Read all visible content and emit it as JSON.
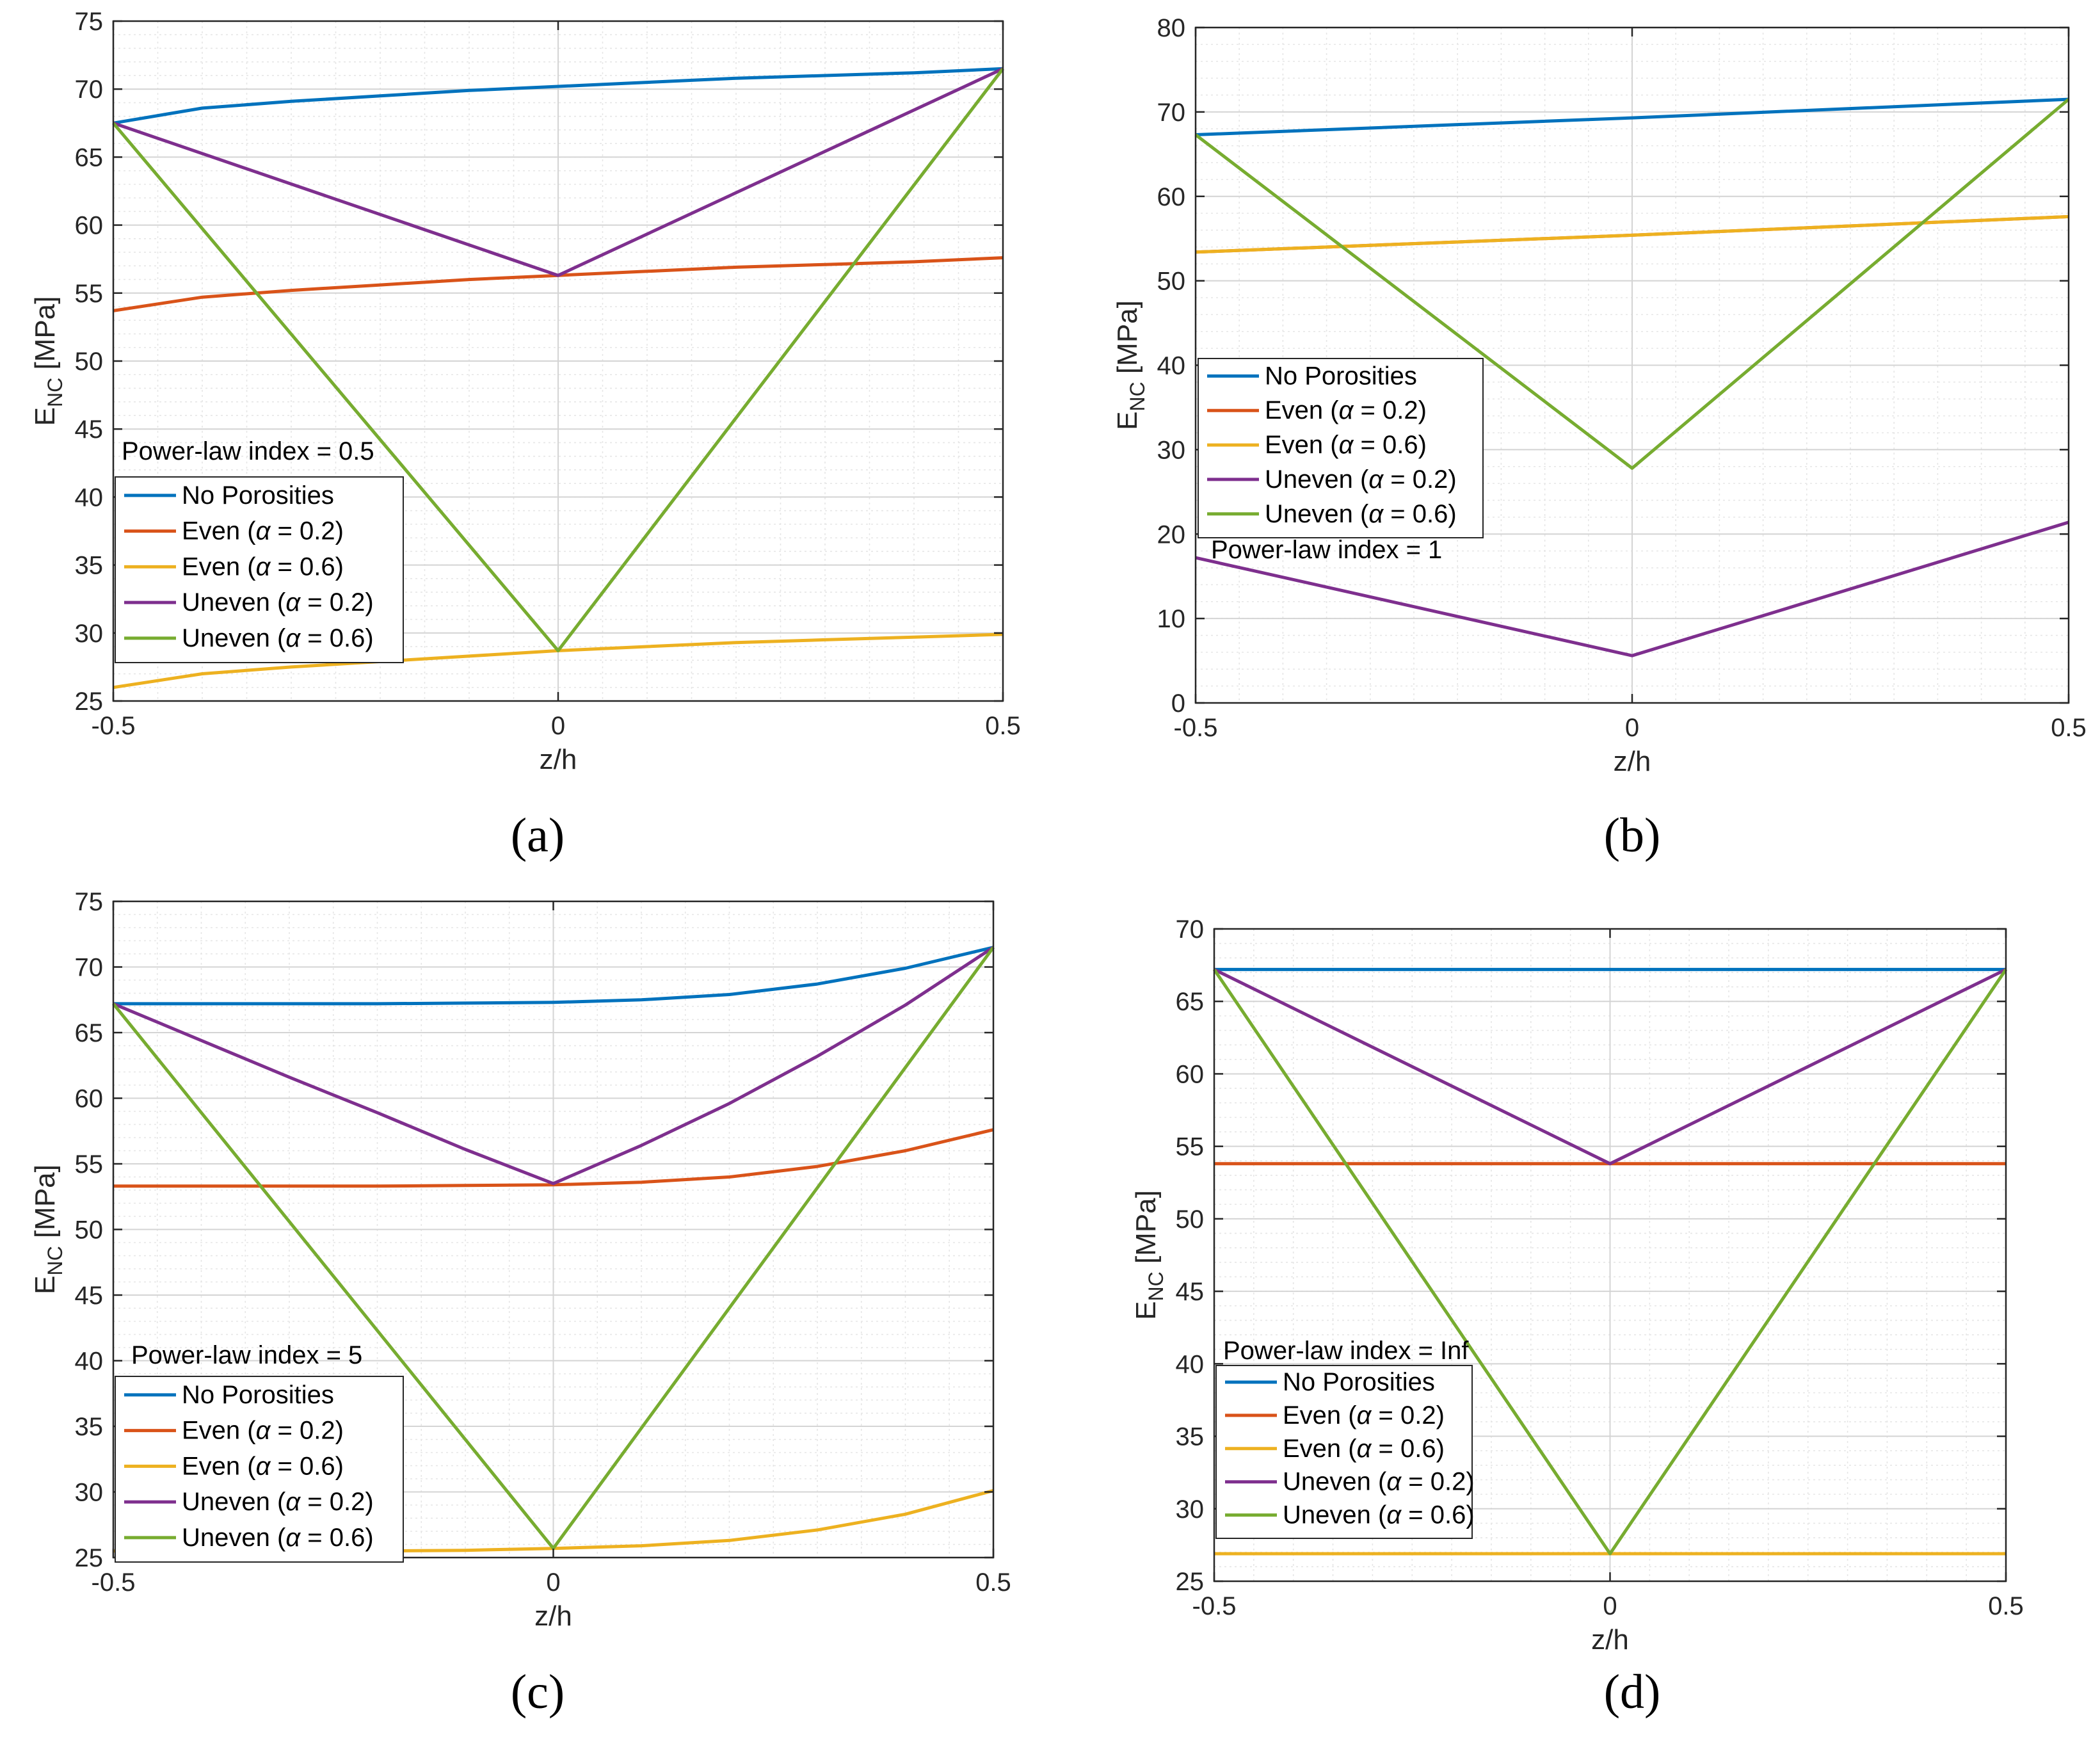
{
  "figure": {
    "panel_labels": [
      "(a)",
      "(b)",
      "(c)",
      "(d)"
    ]
  },
  "series_style": {
    "No Porosities": "#0072bd",
    "Even (α = 0.2)": "#d95319",
    "Even (α = 0.6)": "#edb120",
    "Uneven (α = 0.2)": "#7e2f8e",
    "Uneven (α = 0.6)": "#77ac30"
  },
  "chart_data": [
    {
      "type": "line",
      "panel": "(a)",
      "annotation": "Power-law index = 0.5",
      "xlabel": "z/h",
      "ylabel": "E_NC [MPa]",
      "ylabel_main": "E",
      "ylabel_sub": "NC",
      "ylabel_tail": " [MPa]",
      "xlim": [
        -0.5,
        0.5
      ],
      "ylim": [
        25,
        75
      ],
      "xticks": [
        -0.5,
        0,
        0.5
      ],
      "xtick_labels": [
        "-0.5",
        "0",
        "0.5"
      ],
      "yticks": [
        25,
        30,
        35,
        40,
        45,
        50,
        55,
        60,
        65,
        70,
        75
      ],
      "ytick_labels": [
        "25",
        "30",
        "35",
        "40",
        "45",
        "50",
        "55",
        "60",
        "65",
        "70",
        "75"
      ],
      "grid": true,
      "legend": "left, below annotation",
      "legend_labels": [
        "No Porosities",
        "Even (",
        "Even (",
        "Uneven (",
        "Uneven ("
      ],
      "legend_alphas": [
        "",
        "α = 0.2)",
        "α = 0.6)",
        "α = 0.2)",
        "α = 0.6)"
      ],
      "series": [
        {
          "name": "No Porosities",
          "x": [
            -0.5,
            -0.4,
            -0.3,
            -0.2,
            -0.1,
            0,
            0.1,
            0.2,
            0.3,
            0.4,
            0.5
          ],
          "values": [
            67.5,
            68.6,
            69.1,
            69.5,
            69.9,
            70.2,
            70.5,
            70.8,
            71.0,
            71.2,
            71.5
          ]
        },
        {
          "name": "Even (α = 0.2)",
          "x": [
            -0.5,
            -0.4,
            -0.3,
            -0.2,
            -0.1,
            0,
            0.1,
            0.2,
            0.3,
            0.4,
            0.5
          ],
          "values": [
            53.7,
            54.7,
            55.2,
            55.6,
            56.0,
            56.3,
            56.6,
            56.9,
            57.1,
            57.3,
            57.6
          ]
        },
        {
          "name": "Even (α = 0.6)",
          "x": [
            -0.5,
            -0.4,
            -0.3,
            -0.2,
            -0.1,
            0,
            0.1,
            0.2,
            0.3,
            0.4,
            0.5
          ],
          "values": [
            26.0,
            27.0,
            27.5,
            27.9,
            28.3,
            28.7,
            29.0,
            29.3,
            29.5,
            29.7,
            29.9
          ]
        },
        {
          "name": "Uneven (α = 0.2)",
          "x": [
            -0.5,
            0,
            0.5
          ],
          "values": [
            67.5,
            56.3,
            71.5
          ]
        },
        {
          "name": "Uneven (α = 0.6)",
          "x": [
            -0.5,
            0,
            0.5
          ],
          "values": [
            67.5,
            28.7,
            71.5
          ]
        }
      ]
    },
    {
      "type": "line",
      "panel": "(b)",
      "annotation": "Power-law index = 1",
      "xlabel": "z/h",
      "ylabel": "E_NC [MPa]",
      "ylabel_main": "E",
      "ylabel_sub": "NC",
      "ylabel_tail": " [MPa]",
      "xlim": [
        -0.5,
        0.5
      ],
      "ylim": [
        0,
        80
      ],
      "xticks": [
        -0.5,
        0,
        0.5
      ],
      "xtick_labels": [
        "-0.5",
        "0",
        "0.5"
      ],
      "yticks": [
        0,
        10,
        20,
        30,
        40,
        50,
        60,
        70,
        80
      ],
      "ytick_labels": [
        "0",
        "10",
        "20",
        "30",
        "40",
        "50",
        "60",
        "70",
        "80"
      ],
      "grid": true,
      "legend": "left, above annotation",
      "legend_labels": [
        "No Porosities",
        "Even (",
        "Even (",
        "Uneven (",
        "Uneven ("
      ],
      "legend_alphas": [
        "",
        "α = 0.2)",
        "α = 0.6)",
        "α = 0.2)",
        "α = 0.6)"
      ],
      "series": [
        {
          "name": "No Porosities",
          "x": [
            -0.5,
            0,
            0.5
          ],
          "values": [
            67.3,
            69.3,
            71.5
          ]
        },
        {
          "name": "Even (α = 0.2)",
          "x": [
            -0.5,
            0,
            0.5
          ],
          "values": [
            53.4,
            55.4,
            57.6
          ]
        },
        {
          "name": "Even (α = 0.6)",
          "x": [
            -0.5,
            0,
            0.5
          ],
          "values": [
            53.4,
            55.4,
            57.6
          ]
        },
        {
          "name": "Uneven (α = 0.2)",
          "x": [
            -0.5,
            0,
            0.5
          ],
          "values": [
            17.2,
            5.6,
            21.4
          ]
        },
        {
          "name": "Uneven (α = 0.6)",
          "x": [
            -0.5,
            0,
            0.5
          ],
          "values": [
            67.3,
            27.8,
            71.5
          ]
        }
      ]
    },
    {
      "type": "line",
      "panel": "(c)",
      "annotation": "Power-law index = 5",
      "xlabel": "z/h",
      "ylabel": "E_NC [MPa]",
      "ylabel_main": "E",
      "ylabel_sub": "NC",
      "ylabel_tail": " [MPa]",
      "xlim": [
        -0.5,
        0.5
      ],
      "ylim": [
        25,
        75
      ],
      "xticks": [
        -0.5,
        0,
        0.5
      ],
      "xtick_labels": [
        "-0.5",
        "0",
        "0.5"
      ],
      "yticks": [
        25,
        30,
        35,
        40,
        45,
        50,
        55,
        60,
        65,
        70,
        75
      ],
      "ytick_labels": [
        "25",
        "30",
        "35",
        "40",
        "45",
        "50",
        "55",
        "60",
        "65",
        "70",
        "75"
      ],
      "grid": true,
      "legend": "left, below annotation",
      "legend_labels": [
        "No Porosities",
        "Even (",
        "Even (",
        "Uneven (",
        "Uneven ("
      ],
      "legend_alphas": [
        "",
        "α = 0.2)",
        "α = 0.6)",
        "α = 0.2)",
        "α = 0.6)"
      ],
      "series": [
        {
          "name": "No Porosities",
          "x": [
            -0.5,
            -0.4,
            -0.3,
            -0.2,
            -0.1,
            0,
            0.1,
            0.2,
            0.3,
            0.4,
            0.5
          ],
          "values": [
            67.2,
            67.2,
            67.2,
            67.2,
            67.25,
            67.3,
            67.5,
            67.9,
            68.7,
            69.9,
            71.5
          ]
        },
        {
          "name": "Even (α = 0.2)",
          "x": [
            -0.5,
            -0.4,
            -0.3,
            -0.2,
            -0.1,
            0,
            0.1,
            0.2,
            0.3,
            0.4,
            0.5
          ],
          "values": [
            53.3,
            53.3,
            53.3,
            53.3,
            53.35,
            53.4,
            53.6,
            54.0,
            54.8,
            56.0,
            57.6
          ]
        },
        {
          "name": "Even (α = 0.6)",
          "x": [
            -0.5,
            -0.4,
            -0.3,
            -0.2,
            -0.1,
            0,
            0.1,
            0.2,
            0.3,
            0.4,
            0.5
          ],
          "values": [
            25.5,
            25.5,
            25.5,
            25.5,
            25.55,
            25.7,
            25.9,
            26.3,
            27.1,
            28.3,
            30.1
          ]
        },
        {
          "name": "Uneven (α = 0.2)",
          "x": [
            -0.5,
            -0.4,
            -0.3,
            -0.2,
            -0.1,
            0,
            0.1,
            0.2,
            0.3,
            0.4,
            0.5
          ],
          "values": [
            67.2,
            64.4,
            61.6,
            58.9,
            56.1,
            53.5,
            56.4,
            59.6,
            63.2,
            67.1,
            71.5
          ]
        },
        {
          "name": "Uneven (α = 0.6)",
          "x": [
            -0.5,
            0,
            0.5
          ],
          "values": [
            67.2,
            25.7,
            71.5
          ]
        }
      ]
    },
    {
      "type": "line",
      "panel": "(d)",
      "annotation": "Power-law index = Inf",
      "xlabel": "z/h",
      "ylabel": "E_NC [MPa]",
      "ylabel_main": "E",
      "ylabel_sub": "NC",
      "ylabel_tail": " [MPa]",
      "xlim": [
        -0.5,
        0.5
      ],
      "ylim": [
        25,
        70
      ],
      "xticks": [
        -0.5,
        0,
        0.5
      ],
      "xtick_labels": [
        "-0.5",
        "0",
        "0.5"
      ],
      "yticks": [
        25,
        30,
        35,
        40,
        45,
        50,
        55,
        60,
        65,
        70
      ],
      "ytick_labels": [
        "25",
        "30",
        "35",
        "40",
        "45",
        "50",
        "55",
        "60",
        "65",
        "70"
      ],
      "grid": true,
      "legend": "left, below annotation",
      "legend_labels": [
        "No Porosities",
        "Even (",
        "Even (",
        "Uneven (",
        "Uneven ("
      ],
      "legend_alphas": [
        "",
        "α = 0.2)",
        "α = 0.6)",
        "α = 0.2)",
        "α = 0.6)"
      ],
      "series": [
        {
          "name": "No Porosities",
          "x": [
            -0.5,
            0,
            0.5
          ],
          "values": [
            67.2,
            67.2,
            67.2
          ]
        },
        {
          "name": "Even (α = 0.2)",
          "x": [
            -0.5,
            0,
            0.5
          ],
          "values": [
            53.8,
            53.8,
            53.8
          ]
        },
        {
          "name": "Even (α = 0.6)",
          "x": [
            -0.5,
            0,
            0.5
          ],
          "values": [
            26.9,
            26.9,
            26.9
          ]
        },
        {
          "name": "Uneven (α = 0.2)",
          "x": [
            -0.5,
            0,
            0.5
          ],
          "values": [
            67.2,
            53.8,
            67.2
          ]
        },
        {
          "name": "Uneven (α = 0.6)",
          "x": [
            -0.5,
            0,
            0.5
          ],
          "values": [
            67.2,
            26.9,
            67.2
          ]
        }
      ]
    }
  ]
}
